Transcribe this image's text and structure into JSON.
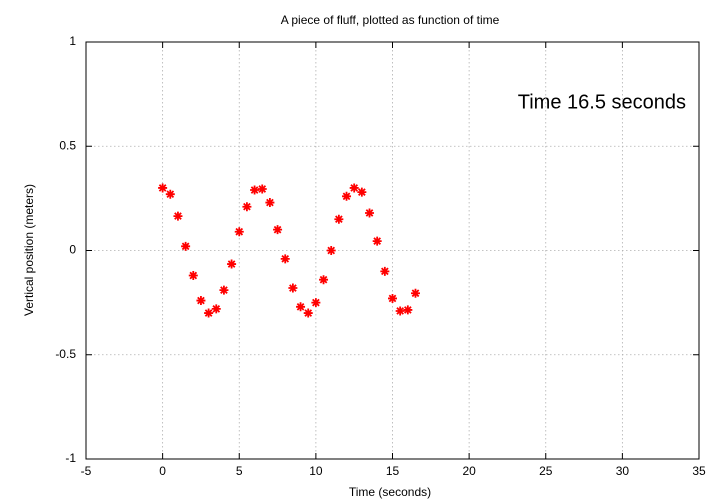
{
  "chart_data": {
    "type": "scatter",
    "title": "A piece of fluff, plotted as function of time",
    "xlabel": "Time (seconds)",
    "ylabel": "Vertical position (meters)",
    "annotation": "Time 16.5 seconds",
    "x": [
      0,
      0.5,
      1,
      1.5,
      2,
      2.5,
      3,
      3.5,
      4,
      4.5,
      5,
      5.5,
      6,
      6.5,
      7,
      7.5,
      8,
      8.5,
      9,
      9.5,
      10,
      10.5,
      11,
      11.5,
      12,
      12.5,
      13,
      13.5,
      14,
      14.5,
      15,
      15.5,
      16,
      16.5
    ],
    "series": [
      {
        "color": "#ff0000",
        "values": [
          0.3,
          0.27,
          0.165,
          0.02,
          -0.12,
          -0.24,
          -0.3,
          -0.28,
          -0.19,
          -0.065,
          0.09,
          0.21,
          0.29,
          0.295,
          0.23,
          0.1,
          -0.04,
          -0.18,
          -0.27,
          -0.3,
          -0.25,
          -0.14,
          0.0,
          0.15,
          0.26,
          0.3,
          0.28,
          0.18,
          0.045,
          -0.1,
          -0.23,
          -0.29,
          -0.285,
          -0.205
        ]
      }
    ],
    "xlim": [
      -5,
      35
    ],
    "xticks": [
      -5,
      0,
      5,
      10,
      15,
      20,
      25,
      30,
      35
    ],
    "ylim": [
      -1,
      1
    ],
    "yticks": [
      -1,
      -0.5,
      0,
      0.5,
      1
    ],
    "grid": true
  }
}
